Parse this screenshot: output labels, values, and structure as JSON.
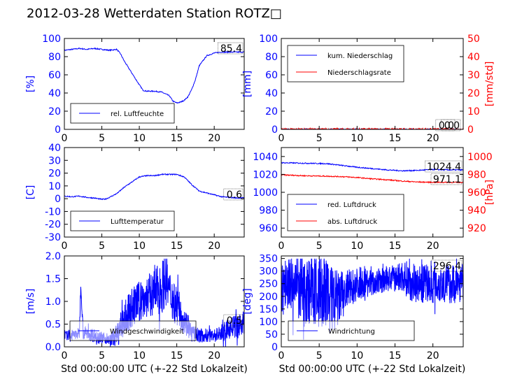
{
  "title": "2012-03-28 Wetterdaten Station ROTZ□",
  "chart_data": [
    {
      "type": "line",
      "ylabel": "[%]",
      "xlim": [
        0,
        24
      ],
      "ylim": [
        0,
        100
      ],
      "xticks": [
        0,
        5,
        10,
        15,
        20
      ],
      "yticks": [
        0,
        20,
        40,
        60,
        80,
        100
      ],
      "legend": "bottom-left",
      "current_value": "85.4",
      "series": [
        {
          "name": "rel. Luftfeuchte",
          "color": "#0000ff",
          "axis": "left",
          "x": [
            0,
            1,
            2,
            3,
            4,
            5,
            6,
            7,
            7.5,
            8,
            9,
            10,
            10.5,
            11,
            12,
            13,
            14,
            14.5,
            15,
            15.5,
            16,
            16.5,
            17,
            17.5,
            18,
            19,
            20,
            21,
            22,
            23,
            24
          ],
          "y": [
            87,
            88,
            89,
            88,
            89,
            88,
            87,
            88,
            83,
            75,
            62,
            49,
            43,
            42,
            42,
            41,
            37,
            31,
            29,
            30,
            32,
            36,
            44,
            55,
            70,
            81,
            84,
            85,
            85,
            85,
            85
          ]
        }
      ]
    },
    {
      "type": "line",
      "ylabel": "[mm]",
      "ylabel_right": "[mm/std]",
      "xlim": [
        0,
        24
      ],
      "ylim": [
        0,
        100
      ],
      "ylim_right": [
        0,
        50
      ],
      "xticks": [
        0,
        5,
        10,
        15,
        20
      ],
      "yticks": [
        0,
        20,
        40,
        60,
        80,
        100
      ],
      "yticks_right": [
        0,
        10,
        20,
        30,
        40,
        50
      ],
      "legend": "top-left",
      "current_value": "0.0",
      "current_value_2": "0.0",
      "series": [
        {
          "name": "kum. Niederschlag",
          "color": "#0000ff",
          "axis": "left",
          "x": [
            0,
            24
          ],
          "y": [
            0,
            0
          ]
        },
        {
          "name": "Niederschlagsrate",
          "color": "#ff0000",
          "axis": "right",
          "x": [
            0,
            24
          ],
          "y": [
            0,
            0
          ]
        }
      ]
    },
    {
      "type": "line",
      "ylabel": "[C]",
      "xlim": [
        0,
        24
      ],
      "ylim": [
        -30,
        40
      ],
      "xticks": [
        0,
        5,
        10,
        15,
        20
      ],
      "yticks": [
        -30,
        -20,
        -10,
        0,
        10,
        20,
        30,
        40
      ],
      "legend": "bottom-left",
      "current_value": "0.6",
      "series": [
        {
          "name": "Lufttemperatur",
          "color": "#0000ff",
          "axis": "left",
          "x": [
            0,
            1,
            2,
            3,
            4,
            5,
            5.5,
            6,
            7,
            8,
            9,
            10,
            11,
            12,
            13,
            14,
            15,
            16,
            17,
            18,
            19,
            20,
            21,
            22,
            23,
            24
          ],
          "y": [
            2,
            1.5,
            2,
            1,
            0.5,
            -0.5,
            -0.3,
            1,
            4,
            9,
            13,
            17,
            18,
            18,
            19,
            19,
            19,
            17,
            11,
            6,
            4.5,
            3,
            1.5,
            1,
            0.6,
            0.6
          ]
        }
      ]
    },
    {
      "type": "line",
      "ylabel_right": "[hPa]",
      "xlim": [
        0,
        24
      ],
      "ylim": [
        950,
        1050
      ],
      "ylim_right": [
        910,
        1010
      ],
      "xticks": [
        0,
        5,
        10,
        15,
        20
      ],
      "yticks": [
        960,
        980,
        1000,
        1020,
        1040
      ],
      "yticks_right": [
        920,
        940,
        960,
        980,
        1000
      ],
      "legend": "bottom-left",
      "current_value": "1024.4",
      "current_value_2": "971.1",
      "series": [
        {
          "name": "red. Luftdruck",
          "color": "#0000ff",
          "axis": "left",
          "x": [
            0,
            3,
            6,
            8,
            10,
            12,
            14,
            16,
            18,
            20,
            22,
            24
          ],
          "y": [
            1033,
            1032.5,
            1032,
            1030,
            1028,
            1026.5,
            1025,
            1024,
            1024.5,
            1025.5,
            1025,
            1025
          ]
        },
        {
          "name": "abs. Luftdruck",
          "color": "#ff0000",
          "axis": "right",
          "x": [
            0,
            3,
            6,
            8,
            10,
            12,
            14,
            16,
            18,
            20,
            22,
            24
          ],
          "y": [
            979.5,
            978.5,
            978,
            977.5,
            976.5,
            975,
            974,
            972.5,
            971.5,
            971.2,
            971.1,
            971.1
          ]
        }
      ]
    },
    {
      "type": "line",
      "ylabel": "[m/s]",
      "xlabel": "Std 00:00:00 UTC (+-22 Std Lokalzeit)",
      "xlim": [
        0,
        24
      ],
      "ylim": [
        0,
        2
      ],
      "xticks": [
        0,
        5,
        10,
        15,
        20
      ],
      "yticks": [
        0.0,
        0.5,
        1.0,
        1.5,
        2.0
      ],
      "legend": "bottom-left",
      "current_value": "0.5",
      "series": [
        {
          "name": "Windgeschwindigkeit",
          "color": "#0000ff",
          "axis": "left",
          "noisy": true,
          "x": [
            0,
            1,
            2,
            2.2,
            2.5,
            3,
            4,
            5,
            6,
            7,
            8,
            9,
            10,
            11,
            12,
            13,
            13.5,
            14,
            15,
            16,
            17,
            18,
            19,
            20,
            21,
            22,
            23,
            24
          ],
          "y": [
            0.25,
            0.25,
            0.3,
            1.4,
            0.3,
            0.3,
            0.25,
            0.2,
            0.15,
            0.25,
            0.6,
            0.85,
            1.0,
            1.1,
            1.2,
            1.3,
            1.5,
            1.2,
            0.9,
            0.6,
            0.3,
            0.25,
            0.25,
            0.25,
            0.3,
            0.4,
            0.45,
            0.5
          ],
          "spread": [
            0.08,
            0.08,
            0.1,
            0.1,
            0.1,
            0.12,
            0.12,
            0.1,
            0.08,
            0.2,
            0.3,
            0.35,
            0.35,
            0.35,
            0.4,
            0.45,
            0.45,
            0.4,
            0.35,
            0.25,
            0.15,
            0.12,
            0.12,
            0.12,
            0.15,
            0.18,
            0.2,
            0.2
          ]
        }
      ]
    },
    {
      "type": "line",
      "ylabel": "[deg]",
      "xlabel": "Std 00:00:00 UTC (+-22 Std Lokalzeit)",
      "xlim": [
        0,
        24
      ],
      "ylim": [
        0,
        360
      ],
      "xticks": [
        0,
        5,
        10,
        15,
        20
      ],
      "yticks": [
        0,
        50,
        100,
        150,
        200,
        250,
        300,
        350
      ],
      "legend": "bottom-left",
      "current_value": "296.4",
      "series": [
        {
          "name": "Windrichtung",
          "color": "#0000ff",
          "axis": "left",
          "noisy": true,
          "x": [
            0,
            1,
            2,
            3,
            4,
            5,
            6,
            7,
            8,
            9,
            10,
            11,
            12,
            13,
            14,
            15,
            16,
            17,
            18,
            19,
            20,
            21,
            22,
            23,
            24
          ],
          "y": [
            230,
            250,
            240,
            220,
            230,
            220,
            200,
            180,
            200,
            230,
            250,
            260,
            250,
            260,
            270,
            270,
            280,
            260,
            250,
            250,
            250,
            250,
            250,
            250,
            260
          ],
          "spread": [
            90,
            90,
            100,
            110,
            110,
            120,
            120,
            100,
            80,
            60,
            50,
            50,
            40,
            40,
            40,
            40,
            50,
            60,
            60,
            60,
            60,
            60,
            60,
            60,
            60
          ]
        }
      ]
    }
  ]
}
